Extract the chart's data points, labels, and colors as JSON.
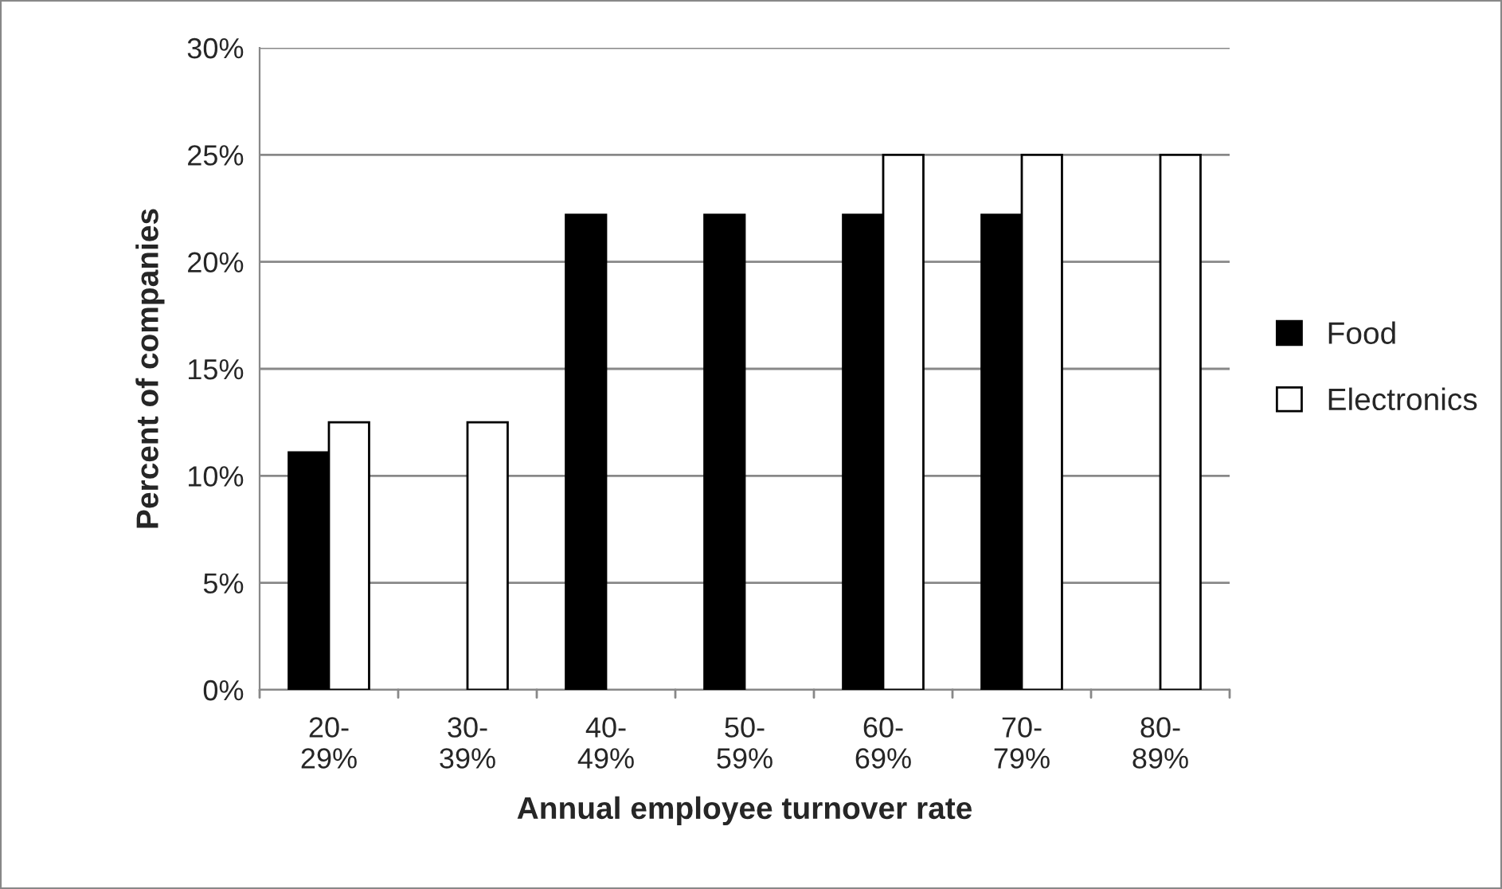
{
  "chart_data": {
    "type": "bar",
    "xlabel": "Annual employee turnover rate",
    "ylabel": "Percent of companies",
    "categories": [
      "20-\n29%",
      "30-\n39%",
      "40-\n49%",
      "50-\n59%",
      "60-\n69%",
      "70-\n79%",
      "80-\n89%"
    ],
    "series": [
      {
        "name": "Food",
        "color": "#000000",
        "values": [
          11.1,
          null,
          22.2,
          22.2,
          22.2,
          22.2,
          null
        ]
      },
      {
        "name": "Electronics",
        "color": "#ffffff",
        "values": [
          12.5,
          12.5,
          null,
          null,
          25,
          25,
          25
        ]
      }
    ],
    "ylim": [
      0,
      30
    ],
    "yticks": [
      {
        "value": 0,
        "label": "0%"
      },
      {
        "value": 5,
        "label": "5%"
      },
      {
        "value": 10,
        "label": "10%"
      },
      {
        "value": 15,
        "label": "15%"
      },
      {
        "value": 20,
        "label": "20%"
      },
      {
        "value": 25,
        "label": "25%"
      },
      {
        "value": 30,
        "label": "30%"
      }
    ],
    "grid": "y",
    "legend": "right"
  }
}
